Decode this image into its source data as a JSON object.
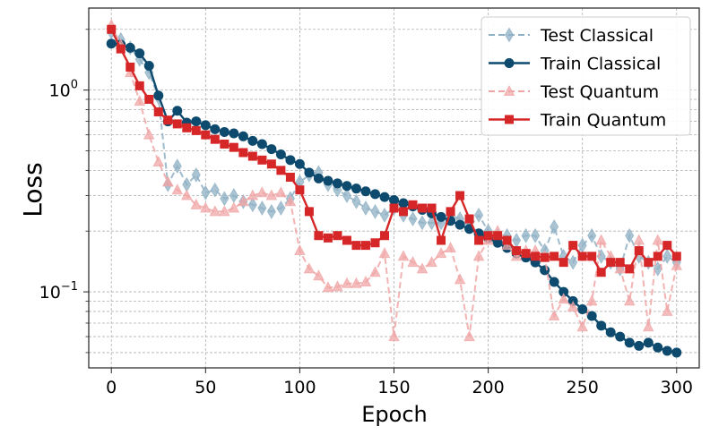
{
  "chart_data": {
    "type": "line",
    "title": "",
    "xlabel": "Epoch",
    "ylabel": "Loss",
    "yscale": "log",
    "xlim": [
      -12,
      312
    ],
    "ylim": [
      0.042,
      2.55
    ],
    "grid": true,
    "legend_position": "top-right",
    "x_ticks": [
      0,
      50,
      100,
      150,
      200,
      250,
      300
    ],
    "x_tick_labels": [
      "0",
      "50",
      "100",
      "150",
      "200",
      "250",
      "300"
    ],
    "y_tick_labels": [
      {
        "value": 1,
        "base": "10",
        "exp": "0"
      },
      {
        "value": 0.1,
        "base": "10",
        "exp": "−1"
      }
    ],
    "x": [
      0,
      5,
      10,
      15,
      20,
      25,
      30,
      35,
      40,
      45,
      50,
      55,
      60,
      65,
      70,
      75,
      80,
      85,
      90,
      95,
      100,
      105,
      110,
      115,
      120,
      125,
      130,
      135,
      140,
      145,
      150,
      155,
      160,
      165,
      170,
      175,
      180,
      185,
      190,
      195,
      200,
      205,
      210,
      215,
      220,
      225,
      230,
      235,
      240,
      245,
      250,
      255,
      260,
      265,
      270,
      275,
      280,
      285,
      290,
      295,
      300
    ],
    "series": [
      {
        "name": "Test Classical",
        "color": "#8fb0c4",
        "linestyle": "dashed",
        "marker": "diamond",
        "values": [
          1.94,
          1.78,
          1.62,
          1.42,
          1.22,
          0.92,
          0.34,
          0.42,
          0.34,
          0.38,
          0.31,
          0.32,
          0.29,
          0.3,
          0.28,
          0.27,
          0.26,
          0.25,
          0.26,
          0.29,
          0.35,
          0.38,
          0.39,
          0.34,
          0.32,
          0.3,
          0.28,
          0.26,
          0.25,
          0.24,
          0.26,
          0.24,
          0.23,
          0.22,
          0.22,
          0.22,
          0.24,
          0.23,
          0.21,
          0.24,
          0.2,
          0.19,
          0.19,
          0.18,
          0.19,
          0.19,
          0.16,
          0.21,
          0.15,
          0.14,
          0.17,
          0.19,
          0.15,
          0.14,
          0.13,
          0.19,
          0.15,
          0.14,
          0.13,
          0.15,
          0.14
        ]
      },
      {
        "name": "Train Classical",
        "color": "#0d4a6e",
        "linestyle": "solid",
        "marker": "circle",
        "values": [
          1.7,
          1.68,
          1.62,
          1.52,
          1.32,
          0.94,
          0.7,
          0.79,
          0.69,
          0.7,
          0.67,
          0.64,
          0.62,
          0.61,
          0.59,
          0.56,
          0.54,
          0.51,
          0.48,
          0.45,
          0.43,
          0.39,
          0.365,
          0.355,
          0.345,
          0.335,
          0.325,
          0.315,
          0.305,
          0.295,
          0.285,
          0.275,
          0.265,
          0.255,
          0.245,
          0.235,
          0.225,
          0.215,
          0.205,
          0.195,
          0.185,
          0.175,
          0.165,
          0.155,
          0.148,
          0.14,
          0.128,
          0.112,
          0.1,
          0.09,
          0.082,
          0.076,
          0.068,
          0.063,
          0.06,
          0.056,
          0.054,
          0.056,
          0.053,
          0.051,
          0.05
        ]
      },
      {
        "name": "Test Quantum",
        "color": "#f0a6a6",
        "linestyle": "dashed",
        "marker": "triangle",
        "values": [
          2.1,
          1.68,
          1.22,
          0.88,
          0.6,
          0.44,
          0.35,
          0.32,
          0.3,
          0.27,
          0.26,
          0.25,
          0.25,
          0.26,
          0.28,
          0.3,
          0.31,
          0.3,
          0.31,
          0.28,
          0.16,
          0.13,
          0.12,
          0.105,
          0.106,
          0.11,
          0.11,
          0.112,
          0.125,
          0.155,
          0.06,
          0.15,
          0.14,
          0.13,
          0.14,
          0.155,
          0.165,
          0.115,
          0.06,
          0.15,
          0.18,
          0.2,
          0.17,
          0.15,
          0.16,
          0.16,
          0.15,
          0.076,
          0.092,
          0.084,
          0.067,
          0.09,
          0.18,
          0.15,
          0.13,
          0.09,
          0.18,
          0.067,
          0.18,
          0.08,
          0.135
        ]
      },
      {
        "name": "Train Quantum",
        "color": "#d62728",
        "linestyle": "solid",
        "marker": "square",
        "values": [
          2.0,
          1.6,
          1.3,
          1.05,
          0.9,
          0.78,
          0.71,
          0.68,
          0.65,
          0.63,
          0.6,
          0.57,
          0.54,
          0.52,
          0.49,
          0.47,
          0.45,
          0.43,
          0.4,
          0.37,
          0.32,
          0.25,
          0.19,
          0.185,
          0.19,
          0.18,
          0.17,
          0.17,
          0.175,
          0.19,
          0.26,
          0.25,
          0.27,
          0.26,
          0.26,
          0.18,
          0.25,
          0.3,
          0.23,
          0.18,
          0.19,
          0.19,
          0.18,
          0.16,
          0.155,
          0.15,
          0.148,
          0.15,
          0.14,
          0.17,
          0.15,
          0.15,
          0.125,
          0.14,
          0.14,
          0.13,
          0.16,
          0.14,
          0.15,
          0.17,
          0.15
        ]
      }
    ]
  }
}
